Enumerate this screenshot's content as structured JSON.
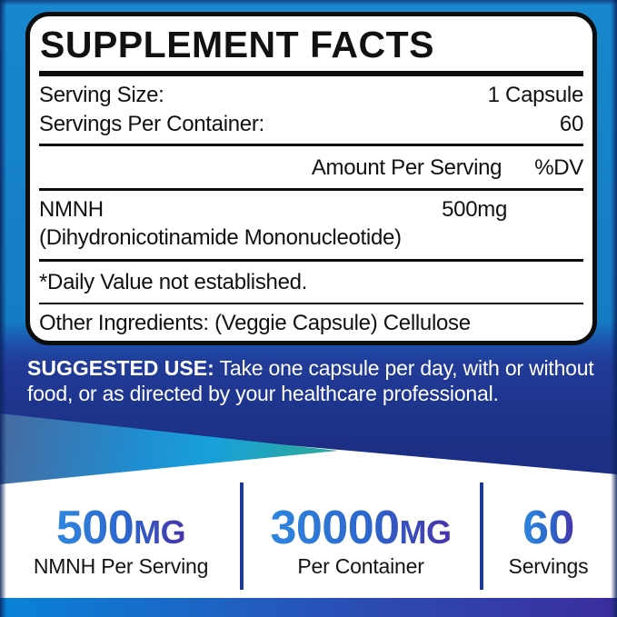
{
  "panel": {
    "title": "SUPPLEMENT FACTS",
    "serving_size_label": "Serving Size:",
    "serving_size_value": "1 Capsule",
    "servings_label": "Servings Per Container:",
    "servings_value": "60",
    "amount_header": "Amount Per Serving",
    "dv_header": "%DV",
    "ingredient": {
      "name": "NMNH",
      "amount": "500mg",
      "detail": "(Dihydronicotinamide Mononucleotide)"
    },
    "footnote": "*Daily Value not established.",
    "other_ingredients": "Other Ingredients: (Veggie Capsule) Cellulose"
  },
  "suggested_use": {
    "label": "SUGGESTED USE:",
    "line1": "Take one capsule per day, with or without",
    "line2": "food, or as directed by your healthcare professional."
  },
  "highlights": [
    {
      "value": "500",
      "unit": "MG",
      "caption": "NMNH Per Serving"
    },
    {
      "value": "30000",
      "unit": "MG",
      "caption": "Per Container"
    },
    {
      "value": "60",
      "unit": "",
      "caption": "Servings"
    }
  ],
  "colors": {
    "frame_blue": "#147cc2",
    "frame_edge_dark": "#0a215c",
    "navy_band": "#1e3389",
    "wedge_steel": "#47699f",
    "wedge_azure": "#18a0da",
    "wedge_teal": "#2ba89f",
    "bottom_bar_left": "#0983d8",
    "bottom_bar_right": "#3b2d9e",
    "stat_gradient_left": "#2e86df",
    "stat_gradient_right": "#4633ab",
    "divider_navy": "#1d3a96",
    "panel_text": "#111111",
    "panel_bg": "#ffffff"
  }
}
